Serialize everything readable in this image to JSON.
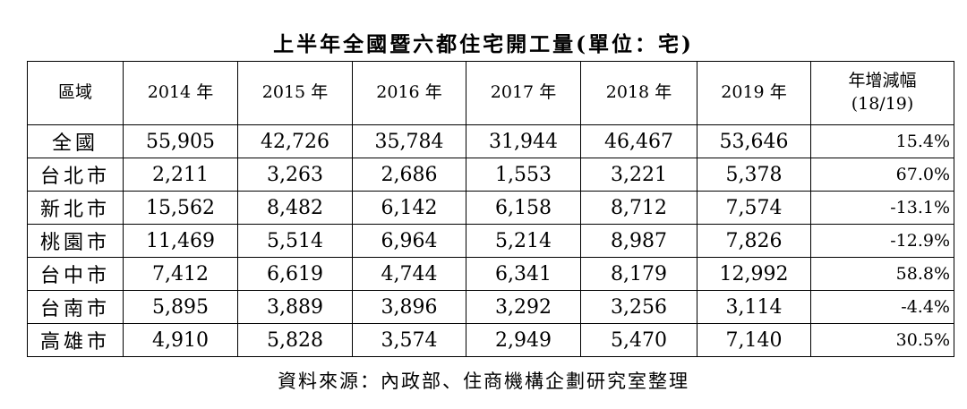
{
  "title": "上半年全國暨六都住宅開工量(單位：宅)",
  "table": {
    "header": [
      "區域",
      "2014 年",
      "2015 年",
      "2016 年",
      "2017 年",
      "2018 年",
      "2019 年",
      "年增減幅"
    ],
    "header_note": "(18/19)",
    "rows": [
      [
        "全國",
        "55,905",
        "42,726",
        "35,784",
        "31,944",
        "46,467",
        "53,646",
        "15.4%"
      ],
      [
        "台北市",
        "2,211",
        "3,263",
        "2,686",
        "1,553",
        "3,221",
        "5,378",
        "67.0%"
      ],
      [
        "新北市",
        "15,562",
        "8,482",
        "6,142",
        "6,158",
        "8,712",
        "7,574",
        "-13.1%"
      ],
      [
        "桃園市",
        "11,469",
        "5,514",
        "6,964",
        "5,214",
        "8,987",
        "7,826",
        "-12.9%"
      ],
      [
        "台中市",
        "7,412",
        "6,619",
        "4,744",
        "6,341",
        "8,179",
        "12,992",
        "58.8%"
      ],
      [
        "台南市",
        "5,895",
        "3,889",
        "3,896",
        "3,292",
        "3,256",
        "3,114",
        "-4.4%"
      ],
      [
        "高雄市",
        "4,910",
        "5,828",
        "3,574",
        "2,949",
        "5,470",
        "7,140",
        "30.5%"
      ]
    ]
  },
  "source": "資料來源：內政部、住商機構企劃研究室整理"
}
